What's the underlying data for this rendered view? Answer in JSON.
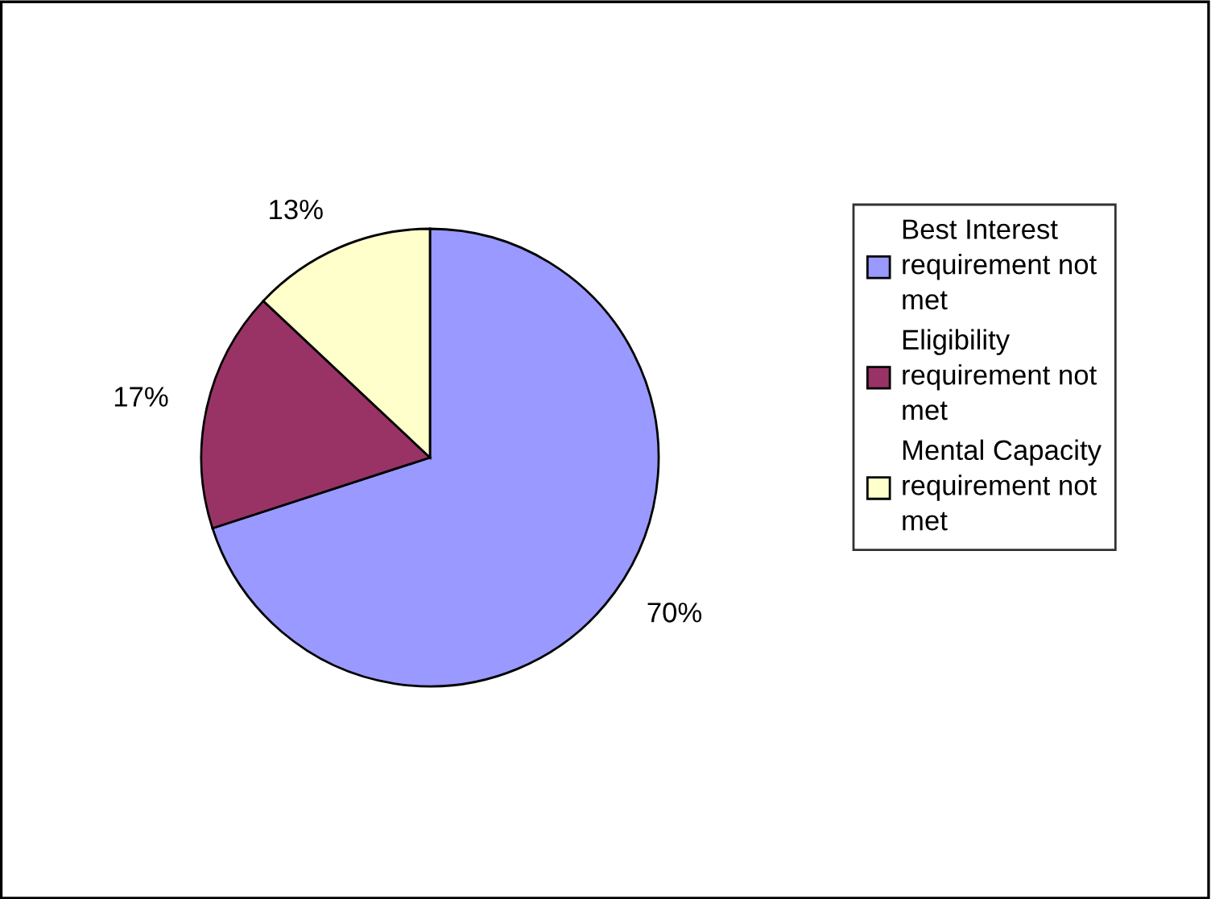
{
  "chart_data": {
    "type": "pie",
    "categories": [
      "Best Interest requirement not met",
      "Eligibility requirement not met",
      "Mental Capacity requirement not met"
    ],
    "values": [
      70,
      17,
      13
    ],
    "colors": [
      "#9999ff",
      "#993366",
      "#ffffcc"
    ],
    "value_labels": [
      "70%",
      "17%",
      "13%"
    ],
    "legend": "right"
  }
}
